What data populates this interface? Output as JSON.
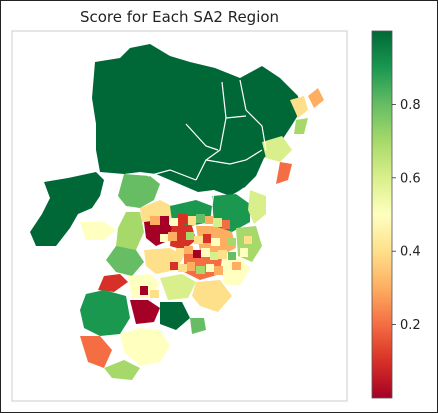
{
  "map": {
    "title": "Score for Each SA2 Region",
    "colormap": "RdYlGn",
    "colors": [
      "#a50026",
      "#d73027",
      "#f46d43",
      "#fdae61",
      "#fee08b",
      "#ffffbf",
      "#d9ef8b",
      "#a6d96a",
      "#66bd63",
      "#1a9850",
      "#006837"
    ],
    "colorbar": {
      "ticks": [
        {
          "label": "0.2",
          "value": 0.2
        },
        {
          "label": "0.4",
          "value": 0.4
        },
        {
          "label": "0.6",
          "value": 0.6
        },
        {
          "label": "0.8",
          "value": 0.8
        }
      ],
      "vmin": 0.0,
      "vmax": 1.0
    }
  }
}
